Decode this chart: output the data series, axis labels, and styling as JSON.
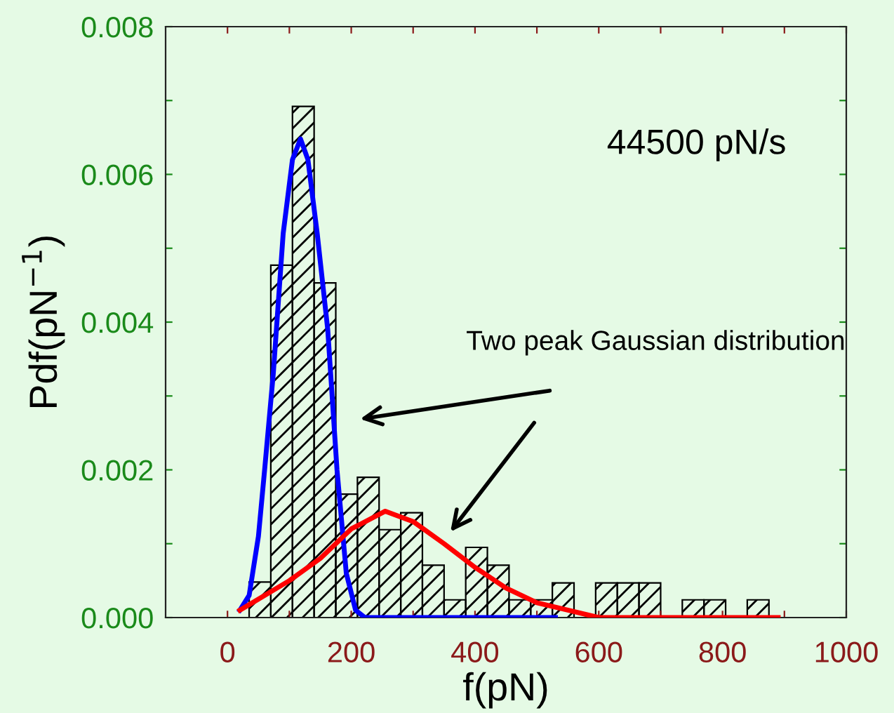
{
  "chart_data": {
    "type": "histogram",
    "xlabel": "f(pN)",
    "ylabel": "Pdf(pN$^{−1}$)",
    "bins": [
      35,
      70,
      105,
      140,
      175,
      210,
      245,
      280,
      315,
      350,
      385,
      420,
      455,
      490,
      525,
      560,
      595,
      630,
      665,
      700,
      735,
      770,
      805,
      840,
      875
    ],
    "values": [
      0.00048,
      0.00477,
      0.00692,
      0.00453,
      0.00167,
      0.0019,
      0.00119,
      0.00142,
      0.00071,
      0.00024,
      0.00095,
      0.00071,
      0.00024,
      0.00024,
      0.00047,
      0,
      0.00047,
      0.00047,
      0.00047,
      0,
      0.00024,
      0.00024,
      0,
      0.00024
    ],
    "color": "#000000",
    "series": [
      {
        "type": "line",
        "color": "#0000ff",
        "x": [
          20,
          35,
          50,
          60,
          74,
          90,
          105,
          118,
          130,
          145,
          162,
          177,
          192,
          207,
          222,
          250,
          400,
          530
        ],
        "values": [
          0.0001,
          0.0003,
          0.0011,
          0.002,
          0.0033,
          0.0052,
          0.0062,
          0.00648,
          0.0062,
          0.0052,
          0.0039,
          0.002,
          0.0006,
          0.0001,
          0,
          0,
          0,
          0
        ]
      },
      {
        "type": "line",
        "color": "#ff0000",
        "x": [
          20,
          50,
          100,
          150,
          200,
          255,
          300,
          350,
          400,
          450,
          500,
          550,
          600,
          700,
          890
        ],
        "values": [
          0.0001,
          0.00025,
          0.0005,
          0.0008,
          0.0012,
          0.00144,
          0.0013,
          0.001,
          0.00068,
          0.0004,
          0.0002,
          0.0001,
          0,
          0,
          0
        ]
      }
    ],
    "xlim": [
      -100,
      1000
    ],
    "ylim": [
      0,
      0.008
    ],
    "xticks": [
      0,
      200,
      400,
      600,
      800,
      1000,
      {
        "value": 100,
        "label": null
      },
      {
        "value": 300,
        "label": null
      },
      {
        "value": 500,
        "label": null
      },
      {
        "value": 700,
        "label": null
      },
      {
        "value": 900,
        "label": null
      }
    ],
    "yticks": [
      {
        "value": 0,
        "label": "0.000"
      },
      {
        "value": 0.002,
        "label": "0.002"
      },
      {
        "value": 0.004,
        "label": "0.004"
      },
      {
        "value": 0.006,
        "label": "0.006"
      },
      {
        "value": 0.008,
        "label": "0.008"
      },
      {
        "value": 0.001,
        "label": null
      },
      {
        "value": 0.003,
        "label": null
      },
      {
        "value": 0.005,
        "label": null
      },
      {
        "value": 0.007,
        "label": null
      }
    ],
    "annotations": [
      "44500 pN/s",
      "Two peak Gaussian distribution"
    ],
    "grid": false,
    "legend": false
  }
}
